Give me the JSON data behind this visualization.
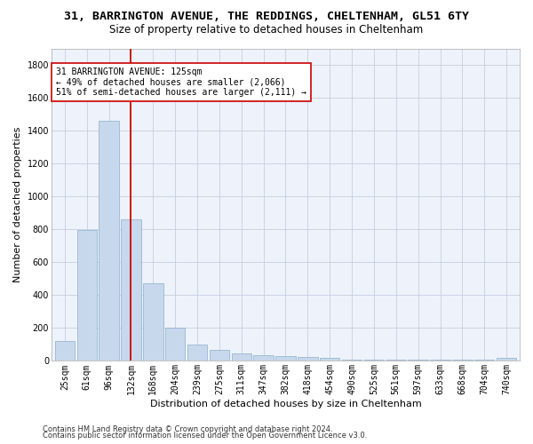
{
  "title1": "31, BARRINGTON AVENUE, THE REDDINGS, CHELTENHAM, GL51 6TY",
  "title2": "Size of property relative to detached houses in Cheltenham",
  "xlabel": "Distribution of detached houses by size in Cheltenham",
  "ylabel": "Number of detached properties",
  "categories": [
    "25sqm",
    "61sqm",
    "96sqm",
    "132sqm",
    "168sqm",
    "204sqm",
    "239sqm",
    "275sqm",
    "311sqm",
    "347sqm",
    "382sqm",
    "418sqm",
    "454sqm",
    "490sqm",
    "525sqm",
    "561sqm",
    "597sqm",
    "633sqm",
    "668sqm",
    "704sqm",
    "740sqm"
  ],
  "values": [
    120,
    795,
    1460,
    860,
    470,
    200,
    100,
    65,
    45,
    35,
    30,
    25,
    20,
    5,
    5,
    5,
    5,
    5,
    5,
    5,
    20
  ],
  "bar_color": "#c8d8ec",
  "bar_edge_color": "#8aafc8",
  "vline_x_idx": 3,
  "vline_color": "#cc0000",
  "annotation_text": "31 BARRINGTON AVENUE: 125sqm\n← 49% of detached houses are smaller (2,066)\n51% of semi-detached houses are larger (2,111) →",
  "annotation_box_color": "#ffffff",
  "annotation_box_edge": "#cc0000",
  "ylim": [
    0,
    1900
  ],
  "yticks": [
    0,
    200,
    400,
    600,
    800,
    1000,
    1200,
    1400,
    1600,
    1800
  ],
  "background_color": "#eef2fb",
  "footer1": "Contains HM Land Registry data © Crown copyright and database right 2024.",
  "footer2": "Contains public sector information licensed under the Open Government Licence v3.0.",
  "title1_fontsize": 9.5,
  "title2_fontsize": 8.5,
  "xlabel_fontsize": 8,
  "ylabel_fontsize": 8,
  "tick_fontsize": 7,
  "annotation_fontsize": 7,
  "footer_fontsize": 6
}
